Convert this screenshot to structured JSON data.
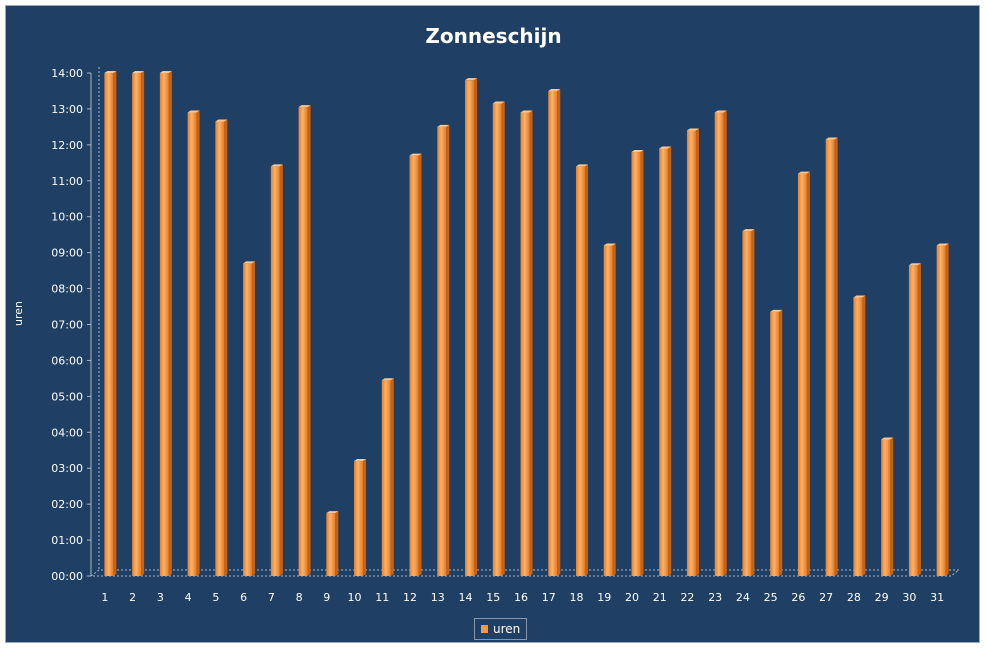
{
  "chart_data": {
    "type": "bar",
    "title": "Zonneschijn",
    "ylabel": "uren",
    "xlabel": "",
    "ylim": [
      0,
      14
    ],
    "y_ticks": [
      "00:00",
      "01:00",
      "02:00",
      "03:00",
      "04:00",
      "05:00",
      "06:00",
      "07:00",
      "08:00",
      "09:00",
      "10:00",
      "11:00",
      "12:00",
      "13:00",
      "14:00"
    ],
    "categories": [
      "1",
      "2",
      "3",
      "4",
      "5",
      "6",
      "7",
      "8",
      "9",
      "10",
      "11",
      "12",
      "13",
      "14",
      "15",
      "16",
      "17",
      "18",
      "19",
      "20",
      "21",
      "22",
      "23",
      "24",
      "25",
      "26",
      "27",
      "28",
      "29",
      "30",
      "31"
    ],
    "series": [
      {
        "name": "uren",
        "color": "#f59942",
        "values": [
          14.0,
          14.0,
          14.0,
          12.9,
          12.65,
          8.7,
          11.4,
          13.05,
          1.75,
          3.2,
          5.45,
          11.7,
          12.5,
          13.8,
          13.15,
          12.9,
          13.5,
          11.4,
          9.2,
          11.8,
          11.9,
          12.4,
          12.9,
          9.6,
          7.35,
          11.2,
          12.15,
          7.75,
          3.8,
          8.65,
          9.2
        ]
      }
    ],
    "grid": false,
    "legend_position": "bottom"
  }
}
